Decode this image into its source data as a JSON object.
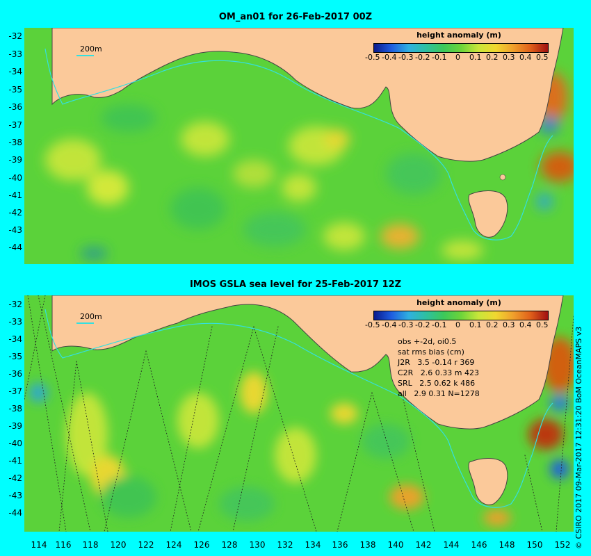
{
  "top_panel": {
    "title": "OM_an01 for 26-Feb-2017 00Z",
    "scale_label": "200m",
    "colorbar": {
      "title": "height anomaly (m)",
      "ticks": [
        "-0.5",
        "-0.4",
        "-0.3",
        "-0.2",
        "-0.1",
        "0",
        "0.1",
        "0.2",
        "0.3",
        "0.4",
        "0.5"
      ]
    }
  },
  "bottom_panel": {
    "title": "IMOS GSLA sea level  for 25-Feb-2017 12Z",
    "scale_label": "200m",
    "colorbar": {
      "title": "height anomaly (m)",
      "ticks": [
        "-0.5",
        "-0.4",
        "-0.3",
        "-0.2",
        "-0.1",
        "0",
        "0.1",
        "0.2",
        "0.3",
        "0.4",
        "0.5"
      ]
    },
    "stats": [
      "obs +-2d, oi0.5",
      "sat rms bias (cm)",
      "J2R   3.5 -0.14 r 369",
      "C2R   2.6 0.33 m 423",
      "SRL   2.5 0.62 k 486",
      "all   2.9 0.31 N=1278"
    ]
  },
  "lat_labels": [
    "-32",
    "-33",
    "-34",
    "-35",
    "-36",
    "-37",
    "-38",
    "-39",
    "-40",
    "-41",
    "-42",
    "-43",
    "-44"
  ],
  "lon_labels": [
    "114",
    "116",
    "118",
    "120",
    "122",
    "124",
    "126",
    "128",
    "130",
    "132",
    "134",
    "136",
    "138",
    "140",
    "142",
    "144",
    "146",
    "148",
    "150",
    "152"
  ],
  "credit": "© CSIRO 2017  09-Mar-2017 12:31:20 BoM OceanMAPS v3",
  "colors": {
    "background": "#00ffff",
    "land": "#fbc99a",
    "ocean_base": "#5bd23a",
    "isobath": "#33e0e0"
  }
}
